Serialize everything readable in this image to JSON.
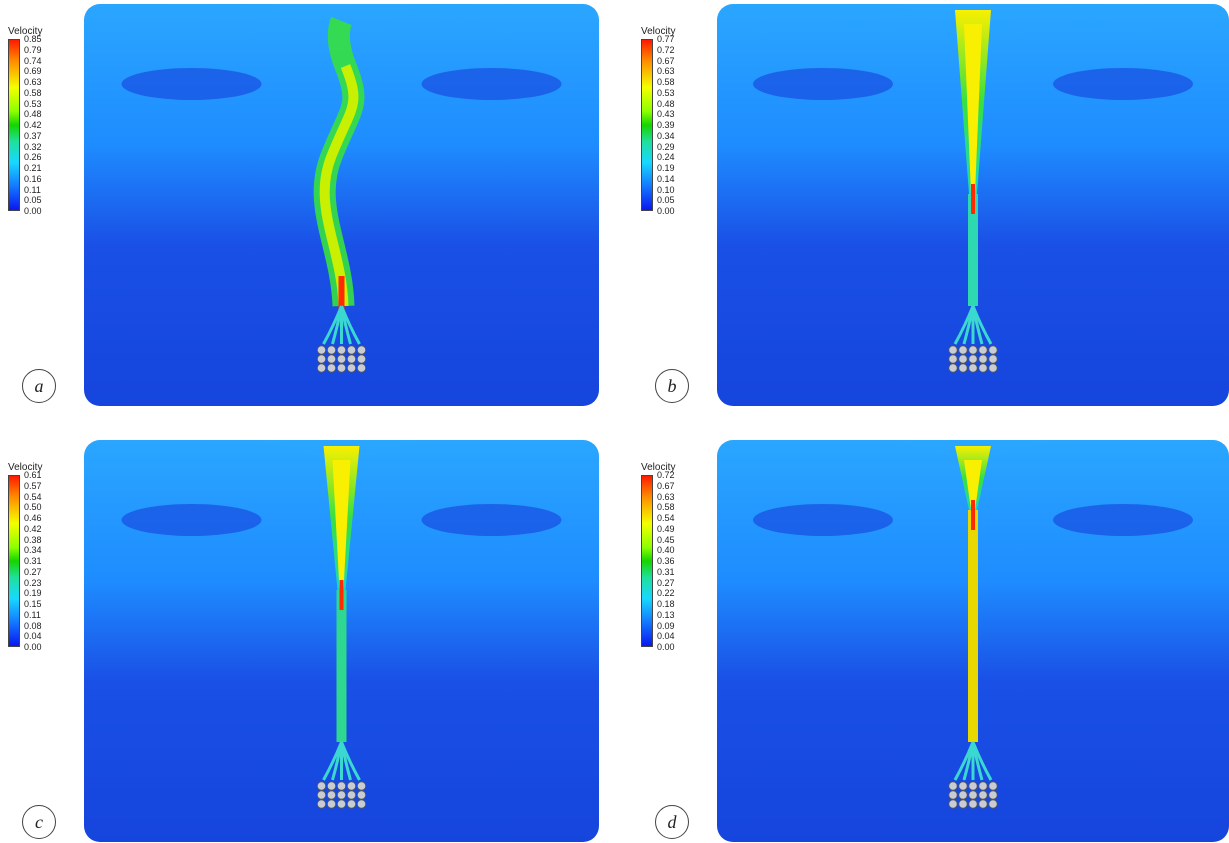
{
  "panels": [
    {
      "label": "a",
      "legend_title": "Velocity",
      "ticks": [
        "0.85",
        "0.79",
        "0.74",
        "0.69",
        "0.63",
        "0.58",
        "0.53",
        "0.48",
        "0.42",
        "0.37",
        "0.32",
        "0.26",
        "0.21",
        "0.16",
        "0.11",
        "0.05",
        "0.00"
      ],
      "variant": "wavy"
    },
    {
      "label": "b",
      "legend_title": "Velocity",
      "ticks": [
        "0.77",
        "0.72",
        "0.67",
        "0.63",
        "0.58",
        "0.53",
        "0.48",
        "0.43",
        "0.39",
        "0.34",
        "0.29",
        "0.24",
        "0.19",
        "0.14",
        "0.10",
        "0.05",
        "0.00"
      ],
      "variant": "short"
    },
    {
      "label": "c",
      "legend_title": "Velocity",
      "ticks": [
        "0.61",
        "0.57",
        "0.54",
        "0.50",
        "0.46",
        "0.42",
        "0.38",
        "0.34",
        "0.31",
        "0.27",
        "0.23",
        "0.19",
        "0.15",
        "0.11",
        "0.08",
        "0.04",
        "0.00"
      ],
      "variant": "mid"
    },
    {
      "label": "d",
      "legend_title": "Velocity",
      "ticks": [
        "0.72",
        "0.67",
        "0.63",
        "0.58",
        "0.54",
        "0.49",
        "0.45",
        "0.40",
        "0.36",
        "0.31",
        "0.27",
        "0.22",
        "0.18",
        "0.13",
        "0.09",
        "0.04",
        "0.00"
      ],
      "variant": "long"
    }
  ],
  "colors": {
    "field": "#1a50e6",
    "field_light": "#2aa6ff",
    "jet_core": "#f8f000",
    "jet_hot": "#ff2a00",
    "jet_green": "#36e040"
  }
}
